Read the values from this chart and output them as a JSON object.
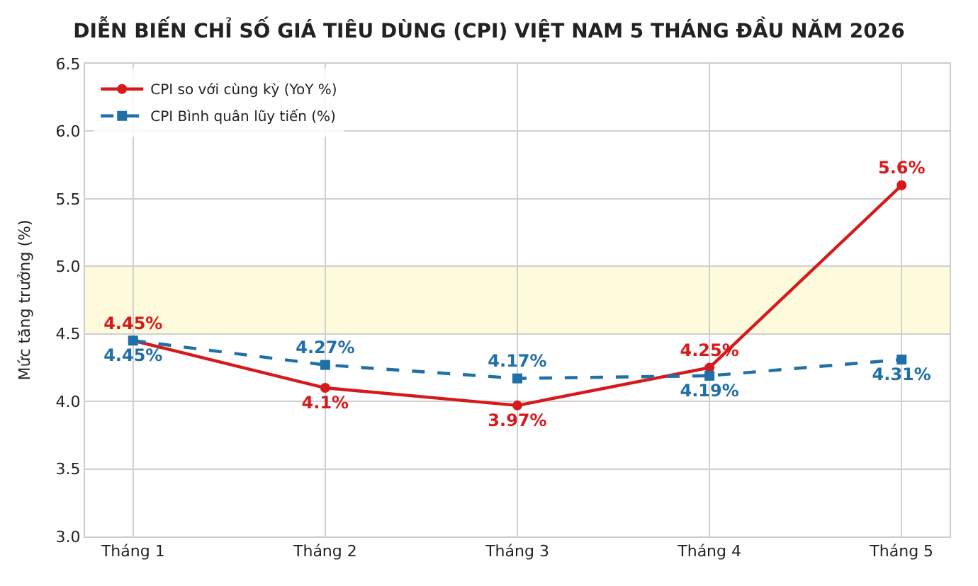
{
  "chart_data": {
    "type": "line",
    "title": "DIỄN BIẾN CHỈ SỐ GIÁ TIÊU DÙNG (CPI) VIỆT NAM 5 THÁNG ĐẦU NĂM 2026",
    "ylabel": "Mức tăng trưởng (%)",
    "categories": [
      "Tháng 1",
      "Tháng 2",
      "Tháng 3",
      "Tháng 4",
      "Tháng 5"
    ],
    "series": [
      {
        "name": "CPI so với cùng kỳ (YoY %)",
        "color": "#d7191c",
        "values": [
          4.45,
          4.1,
          3.97,
          4.25,
          5.6
        ],
        "value_labels": [
          "4.45%",
          "4.1%",
          "3.97%",
          "4.25%",
          "5.6%"
        ],
        "marker": "circle",
        "line_style": "solid"
      },
      {
        "name": "CPI Bình quân lũy tiến (%)",
        "color": "#1f6fa8",
        "values": [
          4.45,
          4.27,
          4.17,
          4.19,
          4.31
        ],
        "value_labels": [
          "4.45%",
          "4.27%",
          "4.17%",
          "4.19%",
          "4.31%"
        ],
        "marker": "square",
        "line_style": "dashed"
      }
    ],
    "ylim": [
      3.0,
      6.5
    ],
    "yticks": [
      {
        "value": 3.0,
        "label": "3.0"
      },
      {
        "value": 3.5,
        "label": "3.5"
      },
      {
        "value": 4.0,
        "label": "4.0"
      },
      {
        "value": 4.5,
        "label": "4.5"
      },
      {
        "value": 5.0,
        "label": "5.0"
      },
      {
        "value": 5.5,
        "label": "5.5"
      },
      {
        "value": 6.0,
        "label": "6.0"
      },
      {
        "value": 6.5,
        "label": "6.5"
      }
    ],
    "bands": [
      {
        "axis": "y",
        "from": 4.5,
        "to": 5.0,
        "color": "#fdfbdc"
      }
    ],
    "grid": true,
    "legend": "top left"
  }
}
